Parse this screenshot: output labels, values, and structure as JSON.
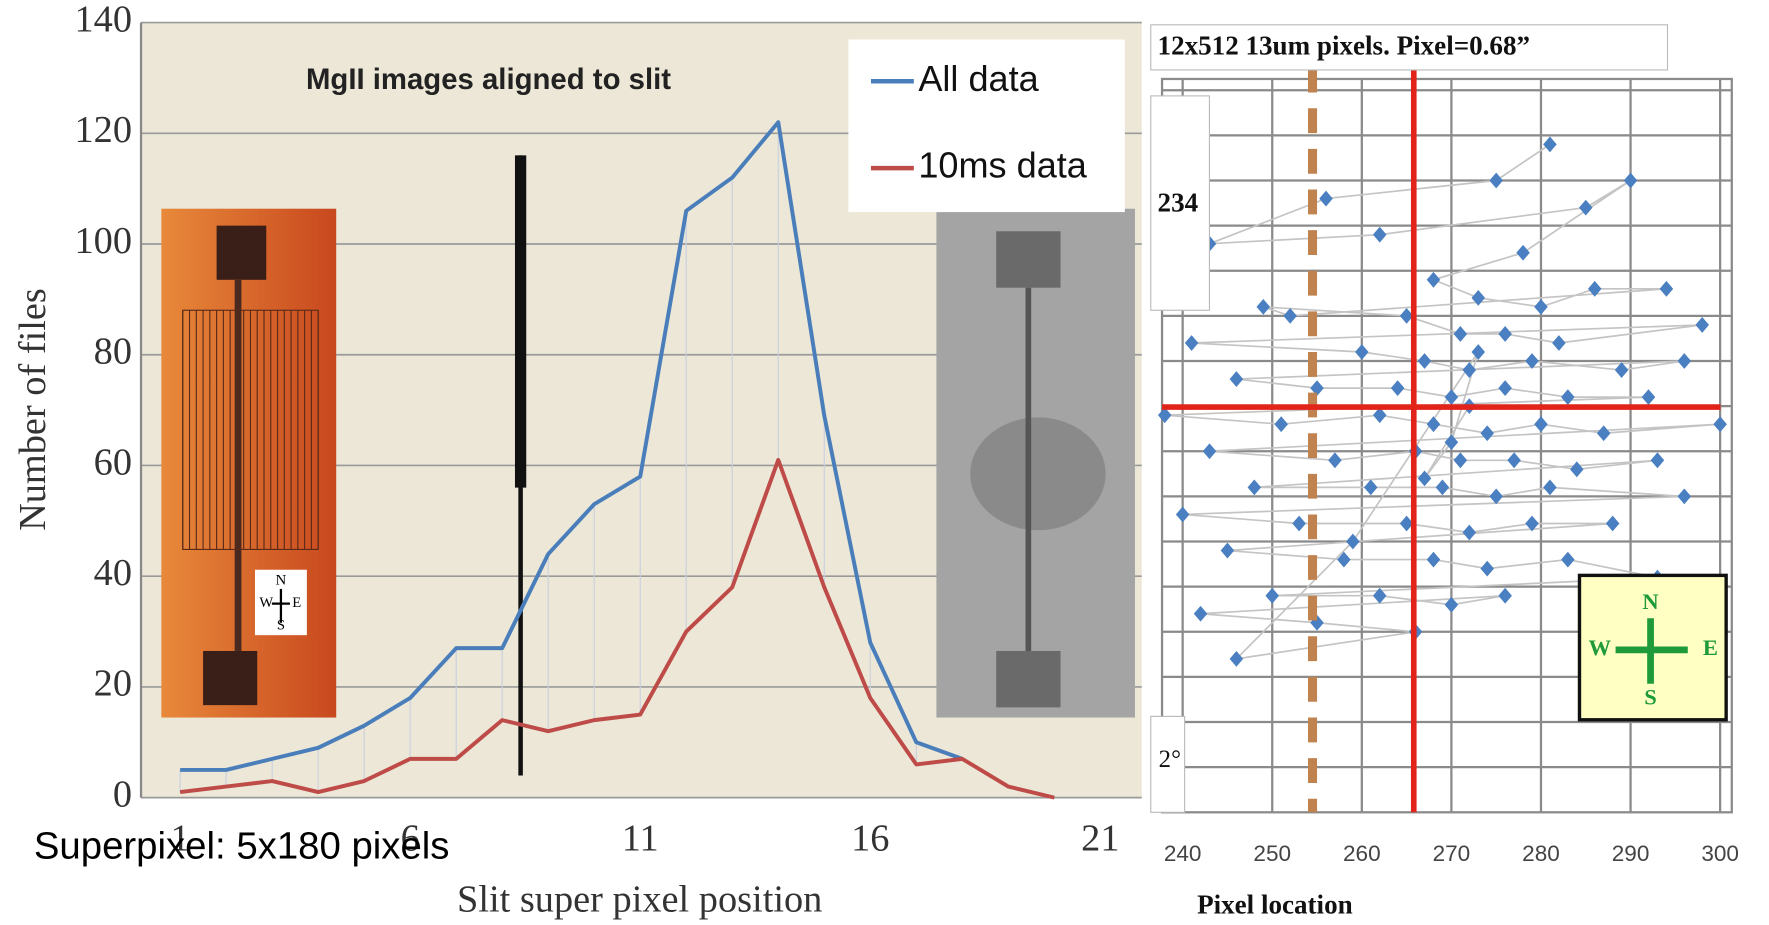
{
  "chart_data": [
    {
      "type": "line",
      "title": "MgII images aligned to slit",
      "x_label": "Slit super pixel position",
      "y_label": "Number of files",
      "x": [
        1,
        2,
        3,
        4,
        5,
        6,
        7,
        8,
        9,
        10,
        11,
        12,
        13,
        14,
        15,
        16,
        17,
        18,
        19,
        20
      ],
      "series": [
        {
          "name": "All data",
          "color": "#4a7ebb",
          "values": [
            5,
            5,
            7,
            9,
            13,
            18,
            27,
            27,
            44,
            53,
            58,
            106,
            112,
            122,
            69,
            28,
            10,
            7,
            null,
            null
          ]
        },
        {
          "name": "10ms data",
          "color": "#be4b48",
          "values": [
            1,
            2,
            3,
            1,
            3,
            7,
            7,
            14,
            12,
            14,
            15,
            30,
            38,
            61,
            38,
            18,
            6,
            7,
            2,
            0
          ]
        }
      ],
      "xlim": [
        0.15,
        21.9
      ],
      "xticks": [
        1,
        6,
        11,
        16,
        21
      ],
      "ylim": [
        0,
        140
      ],
      "yticks": [
        0,
        20,
        40,
        60,
        80,
        100,
        120,
        140
      ],
      "grid": true,
      "marker_line": {
        "x": 8.4,
        "y": [
          4,
          116
        ],
        "thick_from": 56
      },
      "annotation": "Superpixel:  5x180 pixels",
      "compass_labels": [
        "N",
        "W",
        "E",
        "S"
      ]
    },
    {
      "type": "scatter",
      "x_label": "Pixel location",
      "header": "12x512  13um pixels.  Pixel=0.68”",
      "box_labels": [
        "234",
        "2°"
      ],
      "color": "#4a7fc1",
      "line_color": "#c4c4c4",
      "x": [
        281,
        275,
        256,
        243,
        262,
        285,
        290,
        278,
        268,
        273,
        280,
        286,
        294,
        252,
        249,
        265,
        271,
        276,
        282,
        298,
        241,
        260,
        267,
        272,
        279,
        289,
        296,
        246,
        255,
        264,
        270,
        276,
        283,
        292,
        238,
        251,
        262,
        268,
        274,
        280,
        287,
        300,
        243,
        257,
        266,
        271,
        277,
        284,
        293,
        248,
        261,
        269,
        275,
        281,
        296,
        240,
        253,
        265,
        272,
        279,
        288,
        245,
        258,
        268,
        274,
        283,
        293,
        250,
        262,
        270,
        276,
        242,
        255,
        266,
        246,
        259,
        273,
        270,
        267,
        272
      ],
      "values": [
        274,
        270,
        268,
        263,
        264,
        267,
        270,
        262,
        259,
        257,
        256,
        258,
        258,
        255,
        256,
        255,
        253,
        253,
        252,
        254,
        252,
        251,
        250,
        249,
        250,
        249,
        250,
        248,
        247,
        247,
        246,
        247,
        246,
        246,
        244,
        243,
        244,
        243,
        242,
        243,
        242,
        243,
        240,
        239,
        240,
        239,
        239,
        238,
        239,
        236,
        236,
        236,
        235,
        236,
        235,
        233,
        232,
        232,
        231,
        232,
        232,
        229,
        228,
        228,
        227,
        228,
        226,
        224,
        224,
        223,
        224,
        222,
        221,
        220,
        217,
        230,
        251,
        241,
        237,
        245
      ],
      "xlim": [
        237.7,
        301.3
      ],
      "xticks": [
        240,
        250,
        260,
        270,
        280,
        290,
        300
      ],
      "ylim": [
        200,
        281.25
      ],
      "yticks": [
        205,
        210,
        215,
        220,
        225,
        230,
        235,
        240,
        245,
        250,
        255,
        260,
        265,
        270,
        275,
        280
      ],
      "grid": true,
      "vlines": [
        {
          "value": 265.8,
          "color": "#e2231a",
          "dashed": false
        },
        {
          "value": 254.5,
          "color": "#c0824e",
          "dashed": true
        }
      ],
      "hlines": [
        {
          "value": 244.9,
          "color": "#e2231a"
        }
      ],
      "compass_labels": [
        "N",
        "W",
        "E",
        "S"
      ]
    }
  ]
}
